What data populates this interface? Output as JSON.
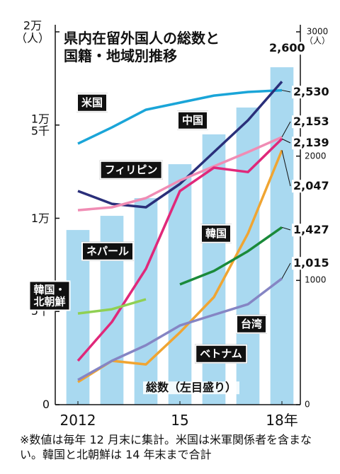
{
  "chart_data": {
    "type": "bar-line",
    "title": "県内在留外国人の総数と\n国籍・地域別推移",
    "categories": [
      "2012",
      null,
      null,
      "15",
      null,
      null,
      "18年"
    ],
    "ylim": [
      0,
      20000
    ],
    "yticks": [
      0,
      {
        "value": 5000,
        "label": "5千"
      },
      {
        "value": 10000,
        "label": "1万"
      },
      {
        "value": 15000,
        "label": "1万\n5千"
      },
      {
        "value": 20000,
        "label": "2万\n（人）"
      }
    ],
    "y2lim": [
      0,
      3000
    ],
    "y2ticks": [
      0,
      1000,
      2000,
      {
        "value": 3000,
        "label": "3000\n（人）"
      }
    ],
    "series": [
      {
        "name": "総数（左目盛り）",
        "type": "bar",
        "axis": "y",
        "color": "#a9d9f0",
        "values": [
          9370,
          10130,
          11080,
          12900,
          14500,
          15940,
          18100
        ]
      },
      {
        "name": "米国",
        "type": "line",
        "axis": "y2",
        "color": "#1aa5d8",
        "values": [
          2100,
          2231,
          2373,
          2430,
          2487,
          2516,
          2530
        ],
        "value_labels": [
          null,
          null,
          null,
          null,
          null,
          null,
          "2,530"
        ]
      },
      {
        "name": "中国",
        "type": "line",
        "axis": "y2",
        "color": "#2a2f7a",
        "values": [
          1719,
          1616,
          1588,
          1776,
          2032,
          2288,
          2600
        ],
        "value_labels": [
          null,
          null,
          null,
          null,
          null,
          null,
          "2,600"
        ]
      },
      {
        "name": "フィリピン",
        "type": "line",
        "axis": "y2",
        "color": "#f08cb4",
        "values": [
          1565,
          1588,
          1662,
          1804,
          1918,
          2032,
          2153
        ],
        "value_labels": [
          null,
          null,
          null,
          null,
          null,
          null,
          "2,153"
        ]
      },
      {
        "name": "ネパール",
        "type": "line",
        "axis": "y2",
        "color": "#e0287a",
        "values": [
          353,
          666,
          1093,
          1719,
          1907,
          1872,
          2139
        ],
        "value_labels": [
          null,
          null,
          null,
          null,
          null,
          null,
          "2,139"
        ]
      },
      {
        "name": "ベトナム",
        "type": "line",
        "axis": "y2",
        "color": "#f0a532",
        "values": [
          182,
          353,
          324,
          581,
          865,
          1377,
          2047
        ],
        "value_labels": [
          null,
          null,
          null,
          null,
          null,
          null,
          "2,047"
        ]
      },
      {
        "name": "韓国",
        "type": "line",
        "axis": "y2",
        "color": "#1a8a3a",
        "values": [
          null,
          null,
          null,
          968,
          1076,
          1235,
          1427
        ],
        "value_labels": [
          null,
          null,
          null,
          null,
          null,
          null,
          "1,427"
        ]
      },
      {
        "name": "台湾",
        "type": "line",
        "axis": "y2",
        "color": "#8585c4",
        "values": [
          199,
          353,
          478,
          637,
          723,
          808,
          1015
        ],
        "value_labels": [
          null,
          null,
          null,
          null,
          null,
          null,
          "1,015"
        ]
      },
      {
        "name": "韓国・\n北朝鮮",
        "type": "line",
        "axis": "y2",
        "color": "#8fd053",
        "values": [
          734,
          768,
          848,
          null,
          null,
          null,
          null
        ]
      }
    ],
    "note": "※数値は毎年 12 月末に集計。米国は米軍関係者を含まない。韓国と北朝鮮は 14 年末まで合計"
  }
}
